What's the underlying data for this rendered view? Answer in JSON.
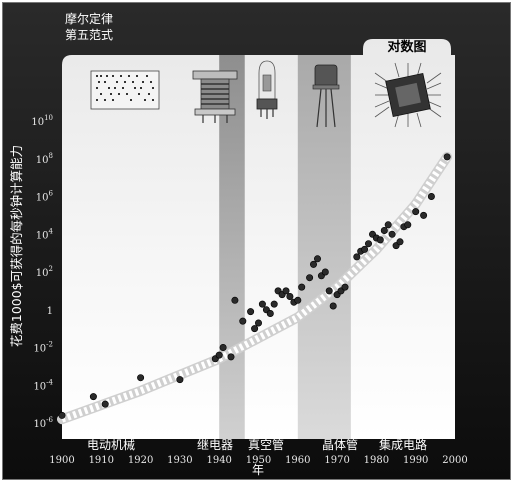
{
  "chart_data": {
    "type": "scatter",
    "title": "摩尔定律\n第五范式",
    "scale_tab": "对数图",
    "ylabel": "花费1000$可获得的每秒钟计算能力",
    "xlabel": "年",
    "x_range": [
      1900,
      2000
    ],
    "y_log10_range": [
      -6,
      10
    ],
    "y_scale": "log",
    "x_ticks": [
      1900,
      1910,
      1920,
      1930,
      1940,
      1950,
      1960,
      1970,
      1980,
      1990,
      2000
    ],
    "y_ticks": [
      {
        "base": "10",
        "exp": "10"
      },
      {
        "base": "10",
        "exp": "8"
      },
      {
        "base": "10",
        "exp": "6"
      },
      {
        "base": "10",
        "exp": "4"
      },
      {
        "base": "10",
        "exp": "2"
      },
      {
        "base": "1",
        "exp": ""
      },
      {
        "base": "10",
        "exp": "-2"
      },
      {
        "base": "10",
        "exp": "-4"
      },
      {
        "base": "10",
        "exp": "-6"
      }
    ],
    "eras": [
      {
        "label": "电动机械",
        "x_start": 1900,
        "x_end": 1940,
        "icon": "punch-card-icon"
      },
      {
        "label": "继电器",
        "x_start": 1940,
        "x_end": 1946.5,
        "icon": "relay-icon"
      },
      {
        "label": "真空管",
        "x_start": 1946.5,
        "x_end": 1960,
        "icon": "vacuum-tube-icon"
      },
      {
        "label": "晶体管",
        "x_start": 1960,
        "x_end": 1973.5,
        "icon": "transistor-icon"
      },
      {
        "label": "集成电路",
        "x_start": 1973.5,
        "x_end": 2000,
        "icon": "integrated-circuit-icon"
      }
    ],
    "trend": {
      "style": "dashed-white",
      "points": [
        [
          1900,
          -5.8
        ],
        [
          1920,
          -4.3
        ],
        [
          1940,
          -2.6
        ],
        [
          1960,
          -0.4
        ],
        [
          1970,
          1.2
        ],
        [
          1980,
          3.2
        ],
        [
          1990,
          5.6
        ],
        [
          1998,
          8.1
        ]
      ]
    },
    "series": [
      {
        "points": [
          [
            1900,
            -5.6
          ],
          [
            1908,
            -4.6
          ],
          [
            1911,
            -5.0
          ],
          [
            1920,
            -3.6
          ],
          [
            1930,
            -3.7
          ],
          [
            1939,
            -2.6
          ],
          [
            1940,
            -2.4
          ],
          [
            1941,
            -2.0
          ],
          [
            1943,
            -2.5
          ],
          [
            1944,
            0.5
          ],
          [
            1946,
            -0.6
          ],
          [
            1948,
            -0.1
          ],
          [
            1949,
            -1.0
          ],
          [
            1950,
            -0.7
          ],
          [
            1951,
            0.3
          ],
          [
            1952,
            0.0
          ],
          [
            1953,
            -0.2
          ],
          [
            1954,
            0.3
          ],
          [
            1955,
            1.0
          ],
          [
            1956,
            0.8
          ],
          [
            1957,
            1.0
          ],
          [
            1958,
            0.7
          ],
          [
            1959,
            0.4
          ],
          [
            1960,
            0.5
          ],
          [
            1961,
            1.2
          ],
          [
            1963,
            1.7
          ],
          [
            1964,
            2.4
          ],
          [
            1965,
            2.7
          ],
          [
            1966,
            1.8
          ],
          [
            1967,
            2.0
          ],
          [
            1968,
            1.0
          ],
          [
            1969,
            0.2
          ],
          [
            1970,
            0.8
          ],
          [
            1971,
            1.0
          ],
          [
            1972,
            1.2
          ],
          [
            1975,
            2.8
          ],
          [
            1976,
            3.1
          ],
          [
            1977,
            3.2
          ],
          [
            1978,
            3.5
          ],
          [
            1979,
            4.0
          ],
          [
            1980,
            3.8
          ],
          [
            1981,
            3.7
          ],
          [
            1982,
            4.2
          ],
          [
            1983,
            4.5
          ],
          [
            1984,
            4.0
          ],
          [
            1985,
            3.4
          ],
          [
            1986,
            3.6
          ],
          [
            1987,
            4.4
          ],
          [
            1988,
            4.5
          ],
          [
            1990,
            5.2
          ],
          [
            1992,
            5.0
          ],
          [
            1994,
            6.0
          ],
          [
            1998,
            8.1
          ]
        ]
      }
    ]
  }
}
